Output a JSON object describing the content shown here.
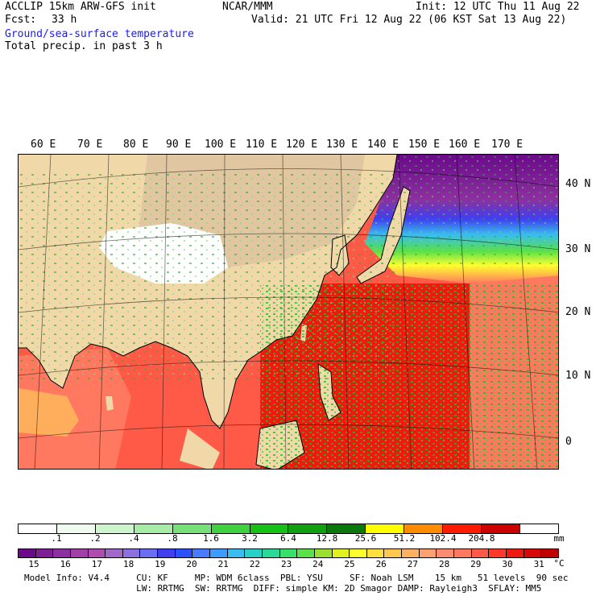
{
  "header": {
    "model": "ACCLIP 15km ARW-GFS init",
    "org": "NCAR/MMM",
    "init": "Init: 12 UTC Thu 11 Aug 22",
    "fcst_label": "Fcst:",
    "fcst_value": "33 h",
    "valid": "Valid: 21 UTC Fri 12 Aug 22 (06 KST Sat 13 Aug 22)",
    "field1": "Ground/sea-surface temperature",
    "field2": "Total precip. in past 3 h"
  },
  "longitude_labels": [
    "60 E",
    "70 E",
    "80 E",
    "90 E",
    "100 E",
    "110 E",
    "120 E",
    "130 E",
    "140 E",
    "150 E",
    "160 E",
    "170 E"
  ],
  "latitude_labels": [
    "40 N",
    "30 N",
    "20 N",
    "10 N",
    "0"
  ],
  "precip_scale": {
    "colors": [
      "#ffffff",
      "#f0fbf0",
      "#ccf5cc",
      "#a6eca6",
      "#78e078",
      "#3fd13f",
      "#16c016",
      "#10a010",
      "#0a780a",
      "#ffff00",
      "#ff8c00",
      "#ff1a00",
      "#cc0000",
      "#ffffff"
    ],
    "labels": [
      ".1",
      ".2",
      ".4",
      ".8",
      "1.6",
      "3.2",
      "6.4",
      "12.8",
      "25.6",
      "51.2",
      "102.4",
      "204.8"
    ],
    "unit": "mm"
  },
  "temp_scale": {
    "colors": [
      "#6a0a8a",
      "#7d1e95",
      "#8c2fa0",
      "#a040a8",
      "#b04cb0",
      "#a068c8",
      "#8c70e0",
      "#6a6ef0",
      "#3f3ff0",
      "#2a50ff",
      "#4a7aff",
      "#3c9cff",
      "#39bcf0",
      "#2ad0c8",
      "#2ad89a",
      "#3ae06c",
      "#5ae048",
      "#9ae030",
      "#e0f020",
      "#ffff30",
      "#ffe040",
      "#ffc850",
      "#ffb060",
      "#ffa070",
      "#ff8c70",
      "#ff7860",
      "#ff5a48",
      "#ff3a2a",
      "#ee1a10",
      "#d80808",
      "#c00000"
    ],
    "labels": [
      "15",
      "16",
      "17",
      "18",
      "19",
      "20",
      "21",
      "22",
      "23",
      "24",
      "25",
      "26",
      "27",
      "28",
      "29",
      "30",
      "31"
    ],
    "unit": "°C"
  },
  "footer": {
    "line1": "Model Info: V4.4     CU: KF     MP: WDM 6class  PBL: YSU     SF: Noah LSM    15 km   51 levels  90 sec",
    "line2": "                     LW: RRTMG  SW: RRTMG  DIFF: simple KM: 2D Smagor DAMP: Rayleigh3  SFLAY: MM5"
  },
  "colors": {
    "land": "#f0d8a8",
    "terrain": "#d8c0a0",
    "ocean_warm": "#ff4a2a",
    "ocean_hot": "#ee1a10",
    "plateau": "#ffffff",
    "cold_sea": "#6a0a8a",
    "precip_green": "#16c016"
  }
}
